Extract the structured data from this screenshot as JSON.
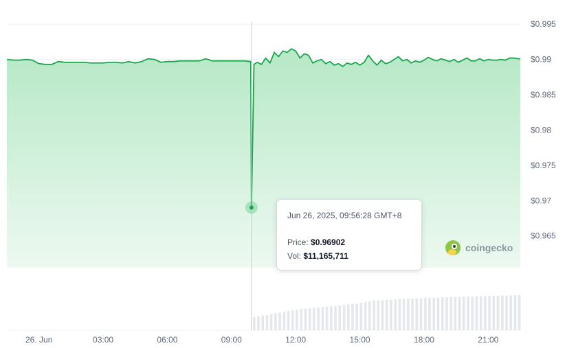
{
  "chart_data": {
    "type": "line",
    "ylim": [
      0.9605,
      0.9957
    ],
    "y_ticks": [
      "$0.995",
      "$0.99",
      "$0.985",
      "$0.98",
      "$0.975",
      "$0.97",
      "$0.965"
    ],
    "y_tick_values": [
      0.995,
      0.99,
      0.985,
      0.98,
      0.975,
      0.97,
      0.965
    ],
    "x_ticks": [
      "26. Jun",
      "03:00",
      "06:00",
      "09:00",
      "12:00",
      "15:00",
      "18:00",
      "21:00"
    ],
    "x_tick_hours": [
      0,
      3,
      6,
      9,
      12,
      15,
      18,
      21
    ],
    "xlim_hours": [
      -1.5,
      22.5
    ],
    "grid": true,
    "series": [
      {
        "x_hours": [
          -1.5,
          -1.2,
          -0.9,
          -0.6,
          -0.3,
          0.0,
          0.3,
          0.6,
          0.9,
          1.2,
          1.5,
          1.8,
          2.1,
          2.4,
          2.7,
          3.0,
          3.3,
          3.6,
          3.9,
          4.2,
          4.5,
          4.8,
          5.1,
          5.4,
          5.7,
          6.0,
          6.3,
          6.6,
          6.9,
          7.2,
          7.5,
          7.8,
          8.1,
          8.4,
          8.7,
          9.0,
          9.3,
          9.6,
          9.9,
          9.933,
          10.05,
          10.2,
          10.4,
          10.6,
          10.8,
          11.0,
          11.2,
          11.4,
          11.6,
          11.8,
          12.0,
          12.2,
          12.4,
          12.6,
          12.8,
          13.0,
          13.2,
          13.4,
          13.6,
          13.8,
          14.0,
          14.2,
          14.4,
          14.6,
          14.8,
          15.0,
          15.2,
          15.4,
          15.6,
          15.8,
          16.0,
          16.2,
          16.4,
          16.6,
          16.8,
          17.0,
          17.2,
          17.4,
          17.6,
          17.8,
          18.0,
          18.2,
          18.4,
          18.6,
          18.8,
          19.0,
          19.2,
          19.4,
          19.6,
          19.8,
          20.0,
          20.2,
          20.4,
          20.6,
          20.8,
          21.0,
          21.2,
          21.4,
          21.6,
          21.8,
          22.0,
          22.2,
          22.4,
          22.5
        ],
        "values": [
          0.99,
          0.9899,
          0.9899,
          0.99,
          0.9899,
          0.9894,
          0.9893,
          0.9893,
          0.9897,
          0.9896,
          0.9896,
          0.9896,
          0.9896,
          0.9895,
          0.9895,
          0.9895,
          0.9896,
          0.9896,
          0.9895,
          0.9897,
          0.9895,
          0.9897,
          0.9901,
          0.99,
          0.9896,
          0.9897,
          0.9897,
          0.9898,
          0.9898,
          0.9898,
          0.9898,
          0.9901,
          0.9898,
          0.9898,
          0.9898,
          0.9898,
          0.9898,
          0.9898,
          0.9897,
          0.96902,
          0.9893,
          0.9896,
          0.9893,
          0.9902,
          0.9895,
          0.991,
          0.9904,
          0.9912,
          0.991,
          0.9915,
          0.9912,
          0.9902,
          0.9908,
          0.9906,
          0.9895,
          0.9898,
          0.99,
          0.9894,
          0.9897,
          0.9892,
          0.9894,
          0.989,
          0.9895,
          0.9893,
          0.9896,
          0.9892,
          0.9896,
          0.9906,
          0.9898,
          0.9892,
          0.9899,
          0.9894,
          0.9896,
          0.99,
          0.9904,
          0.9898,
          0.99,
          0.9895,
          0.9898,
          0.9896,
          0.9899,
          0.9903,
          0.99,
          0.9898,
          0.9901,
          0.9899,
          0.9897,
          0.99,
          0.9896,
          0.9899,
          0.9902,
          0.9898,
          0.9898,
          0.9901,
          0.9898,
          0.99,
          0.9899,
          0.9899,
          0.99,
          0.9899,
          0.9902,
          0.9902,
          0.9901,
          0.9901
        ]
      }
    ],
    "volume_x_hours": [
      10.0,
      10.2,
      10.4,
      10.6,
      10.8,
      11.0,
      11.2,
      11.4,
      11.6,
      11.8,
      12.0,
      12.2,
      12.4,
      12.6,
      12.8,
      13.0,
      13.2,
      13.4,
      13.6,
      13.8,
      14.0,
      14.2,
      14.4,
      14.6,
      14.8,
      15.0,
      15.2,
      15.4,
      15.6,
      15.8,
      16.0,
      16.2,
      16.4,
      16.6,
      16.8,
      17.0,
      17.2,
      17.4,
      17.6,
      17.8,
      18.0,
      18.2,
      18.4,
      18.6,
      18.8,
      19.0,
      19.2,
      19.4,
      19.6,
      19.8,
      20.0,
      20.2,
      20.4,
      20.6,
      20.8,
      21.0,
      21.2,
      21.4,
      21.6,
      21.8,
      22.0,
      22.2,
      22.4
    ],
    "volume_values": [
      0.38,
      0.4,
      0.42,
      0.43,
      0.46,
      0.48,
      0.5,
      0.52,
      0.55,
      0.57,
      0.59,
      0.61,
      0.62,
      0.63,
      0.64,
      0.65,
      0.66,
      0.67,
      0.68,
      0.69,
      0.7,
      0.72,
      0.74,
      0.75,
      0.76,
      0.78,
      0.8,
      0.82,
      0.84,
      0.85,
      0.86,
      0.87,
      0.87,
      0.88,
      0.89,
      0.89,
      0.9,
      0.9,
      0.91,
      0.91,
      0.92,
      0.92,
      0.93,
      0.93,
      0.94,
      0.94,
      0.95,
      0.95,
      0.95,
      0.96,
      0.96,
      0.96,
      0.97,
      0.97,
      0.97,
      0.98,
      0.98,
      0.98,
      0.99,
      0.99,
      0.99,
      1.0,
      1.0
    ],
    "hover": {
      "x_hours": 9.933,
      "value": 0.96902
    },
    "colors": {
      "line": "#16c784",
      "line_dark": "#17a64a",
      "area_top": "#b6e8c6",
      "area_bottom": "#edf9f1",
      "grid": "#eef0f3",
      "volume": "#e4e7eb",
      "crosshair": "#c8ccd2"
    }
  },
  "tooltip": {
    "date": "Jun 26, 2025, 09:56:28 GMT+8",
    "price_label": "Price:",
    "price_value": "$0.96902",
    "vol_label": "Vol:",
    "vol_value": "$11,165,711"
  },
  "watermark": {
    "text": "coingecko",
    "icon": "gecko-logo-icon"
  }
}
